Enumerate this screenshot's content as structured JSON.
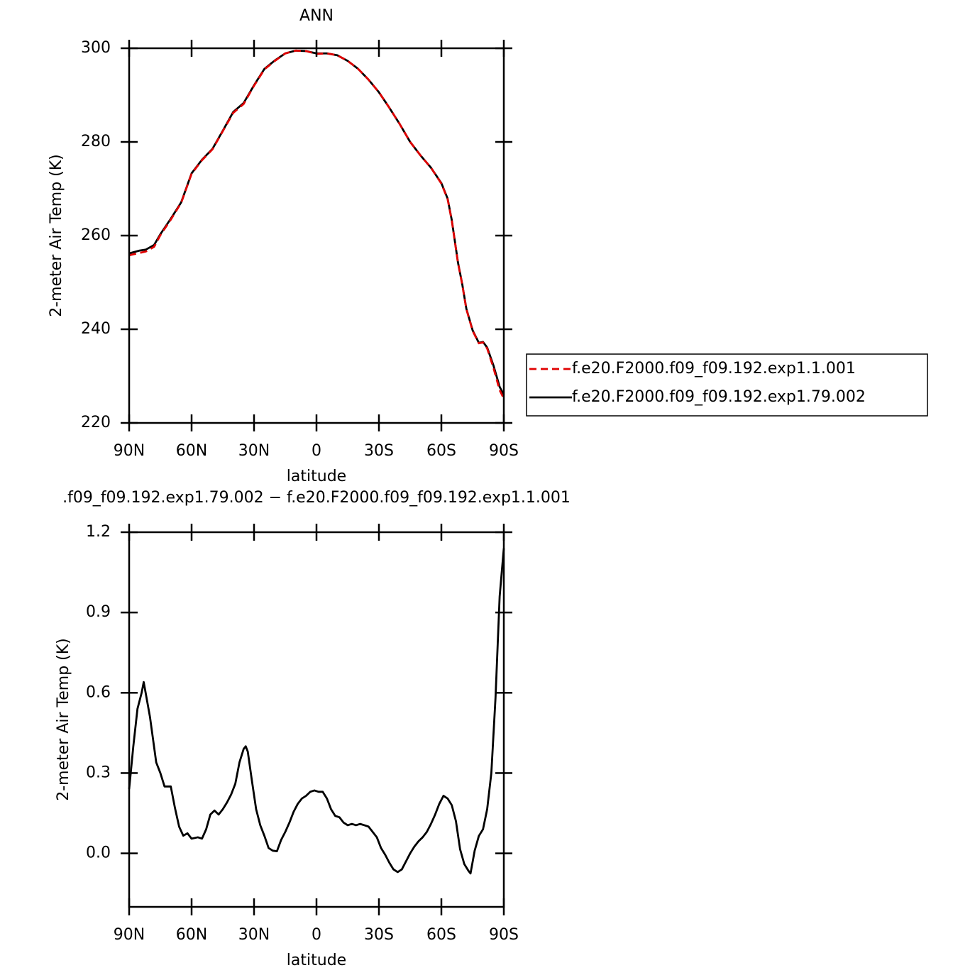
{
  "chart_data": [
    {
      "type": "line",
      "title": "ANN",
      "xlabel": "latitude",
      "ylabel": "2-meter Air Temp (K)",
      "x": [
        90,
        85,
        82,
        78,
        75,
        70,
        65,
        60,
        55,
        50,
        45,
        40,
        35,
        30,
        25,
        20,
        15,
        10,
        5,
        0,
        -5,
        -10,
        -15,
        -20,
        -25,
        -30,
        -35,
        -40,
        -45,
        -50,
        -55,
        -60,
        -63,
        -65,
        -68,
        -70,
        -72,
        -75,
        -78,
        -80,
        -82,
        -85,
        -88,
        -90
      ],
      "series": [
        {
          "name": "f.e20.F2000.f09_f09.192.exp1.1.001",
          "color": "#e00000",
          "linestyle": "dashed",
          "values": [
            255.8,
            256.3,
            256.6,
            257.6,
            260.1,
            263.4,
            267.0,
            273.2,
            276.1,
            278.4,
            282.3,
            286.2,
            288.1,
            292.0,
            295.5,
            297.3,
            298.9,
            299.5,
            299.4,
            298.8,
            298.9,
            298.5,
            297.3,
            295.6,
            293.3,
            290.6,
            287.3,
            283.8,
            280.0,
            277.1,
            274.5,
            271.1,
            267.8,
            263.2,
            254.1,
            249.6,
            244.3,
            239.7,
            237.0,
            237.2,
            235.9,
            231.8,
            227.0,
            225.2
          ]
        },
        {
          "name": "f.e20.F2000.f09_f09.192.exp1.79.002",
          "color": "#000000",
          "linestyle": "solid",
          "values": [
            256.2,
            256.8,
            257.0,
            258.0,
            260.3,
            263.6,
            267.1,
            273.3,
            276.2,
            278.5,
            282.4,
            286.4,
            288.3,
            292.1,
            295.6,
            297.4,
            298.9,
            299.5,
            299.4,
            298.9,
            298.9,
            298.5,
            297.3,
            295.6,
            293.3,
            290.6,
            287.3,
            283.8,
            280.0,
            277.1,
            274.5,
            271.2,
            267.9,
            263.3,
            254.2,
            249.7,
            244.4,
            239.8,
            237.1,
            237.3,
            236.1,
            232.3,
            227.7,
            226.0
          ]
        }
      ],
      "xlim": [
        90,
        -90
      ],
      "xticks": [
        {
          "value": 90,
          "label": "90N"
        },
        {
          "value": 60,
          "label": "60N"
        },
        {
          "value": 30,
          "label": "30N"
        },
        0,
        {
          "value": -30,
          "label": "30S"
        },
        {
          "value": -60,
          "label": "60S"
        },
        {
          "value": -90,
          "label": "90S"
        }
      ],
      "ylim": [
        220,
        300
      ],
      "yticks": [
        220,
        240,
        260,
        280,
        300
      ],
      "legend": "right"
    },
    {
      "type": "line",
      "title": ".f09_f09.192.exp1.79.002 − f.e20.F2000.f09_f09.192.exp1.1.001",
      "xlabel": "latitude",
      "ylabel": "2-meter Air Temp (K)",
      "x": [
        90,
        88,
        86,
        84,
        83,
        80,
        77,
        75,
        73,
        70,
        68,
        66,
        64,
        62,
        60,
        57,
        55,
        53,
        51,
        49,
        47,
        45,
        43,
        41,
        39,
        37,
        35,
        34,
        33,
        31,
        29,
        27,
        25,
        23,
        21,
        19,
        17,
        15,
        13,
        11,
        9,
        7,
        5,
        3,
        1,
        -1,
        -3,
        -5,
        -7,
        -9,
        -11,
        -13,
        -15,
        -17,
        -19,
        -21,
        -23,
        -25,
        -27,
        -29,
        -31,
        -33,
        -35,
        -37,
        -39,
        -41,
        -43,
        -45,
        -47,
        -49,
        -51,
        -53,
        -55,
        -57,
        -59,
        -61,
        -63,
        -65,
        -67,
        -69,
        -71,
        -73,
        -74,
        -76,
        -78,
        -80,
        -82,
        -84,
        -86,
        -88,
        -90
      ],
      "color": "#000000",
      "values": [
        0.24,
        0.4,
        0.54,
        0.6,
        0.64,
        0.51,
        0.34,
        0.3,
        0.25,
        0.25,
        0.17,
        0.1,
        0.066,
        0.075,
        0.055,
        0.06,
        0.055,
        0.09,
        0.145,
        0.16,
        0.145,
        0.165,
        0.19,
        0.22,
        0.26,
        0.34,
        0.39,
        0.4,
        0.38,
        0.27,
        0.165,
        0.105,
        0.065,
        0.02,
        0.01,
        0.008,
        0.05,
        0.08,
        0.115,
        0.155,
        0.185,
        0.205,
        0.215,
        0.23,
        0.235,
        0.23,
        0.23,
        0.205,
        0.165,
        0.14,
        0.135,
        0.115,
        0.105,
        0.11,
        0.105,
        0.11,
        0.105,
        0.1,
        0.08,
        0.06,
        0.02,
        -0.005,
        -0.035,
        -0.06,
        -0.07,
        -0.06,
        -0.03,
        0.0,
        0.025,
        0.045,
        0.06,
        0.08,
        0.11,
        0.145,
        0.185,
        0.215,
        0.205,
        0.18,
        0.12,
        0.015,
        -0.04,
        -0.065,
        -0.075,
        0.01,
        0.065,
        0.09,
        0.165,
        0.3,
        0.58,
        0.96,
        1.14
      ],
      "xlim": [
        90,
        -90
      ],
      "xticks": [
        {
          "value": 90,
          "label": "90N"
        },
        {
          "value": 60,
          "label": "60N"
        },
        {
          "value": 30,
          "label": "30N"
        },
        0,
        {
          "value": -30,
          "label": "30S"
        },
        {
          "value": -60,
          "label": "60S"
        },
        {
          "value": -90,
          "label": "90S"
        }
      ],
      "ylim": [
        -0.2,
        1.2
      ],
      "yticks": [
        {
          "value": 0,
          "label": "0.0"
        },
        0.3,
        0.6,
        0.9,
        1.2
      ]
    }
  ]
}
